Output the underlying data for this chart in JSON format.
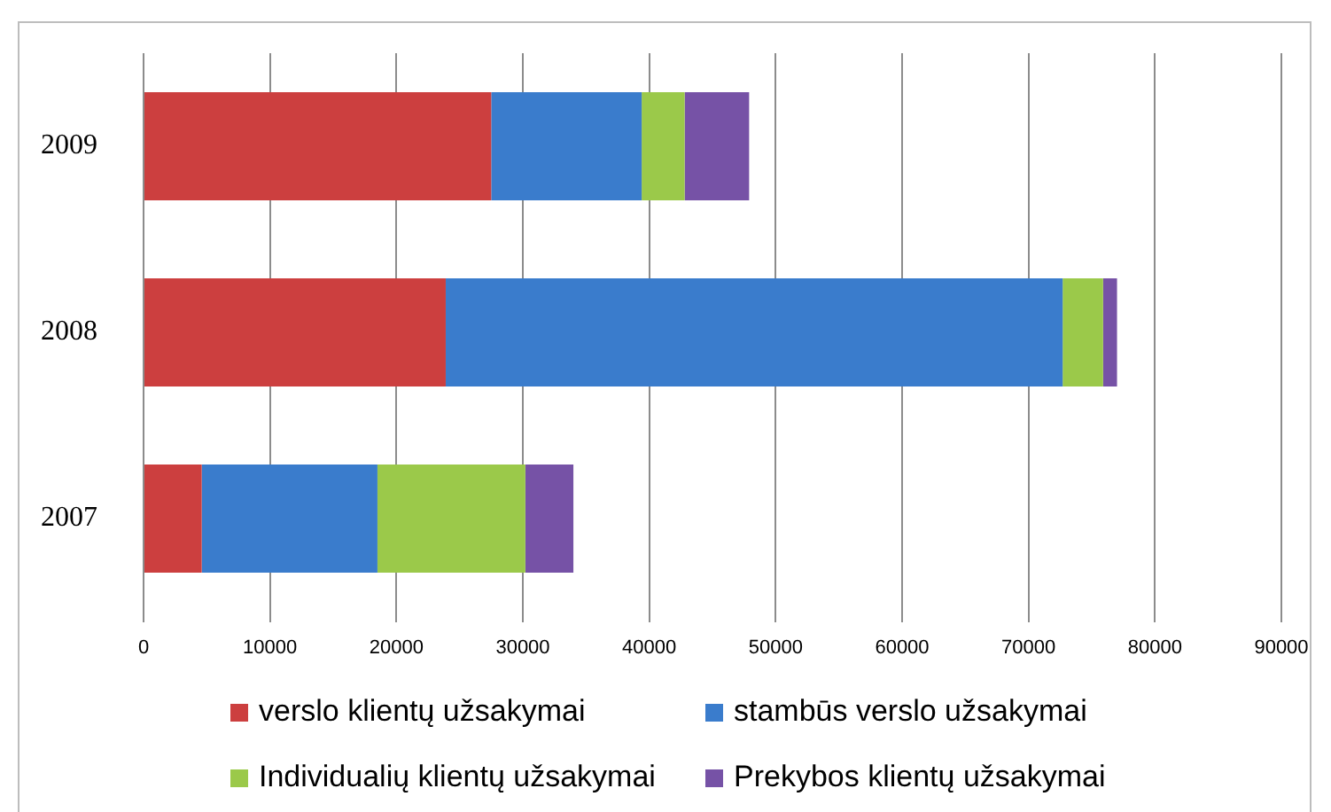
{
  "chart_data": {
    "type": "bar",
    "orientation": "horizontal",
    "stacked": true,
    "categories": [
      "2009",
      "2008",
      "2007"
    ],
    "series": [
      {
        "name": "verslo klientų užsakymai",
        "color": "#cc3f3f",
        "values": [
          27500,
          23900,
          4600
        ]
      },
      {
        "name": "stambūs verslo užsakymai",
        "color": "#3a7ccc",
        "values": [
          11900,
          48800,
          13900
        ]
      },
      {
        "name": "Individualių klientų užsakymai",
        "color": "#9bc94a",
        "values": [
          3400,
          3200,
          11700
        ]
      },
      {
        "name": "Prekybos klientų užsakymai",
        "color": "#7652a6",
        "values": [
          5100,
          1100,
          3800
        ]
      }
    ],
    "xlim": [
      0,
      90000
    ],
    "xticks": [
      0,
      10000,
      20000,
      30000,
      40000,
      50000,
      60000,
      70000,
      80000,
      90000
    ],
    "grid": "x",
    "legend": "bottom"
  }
}
